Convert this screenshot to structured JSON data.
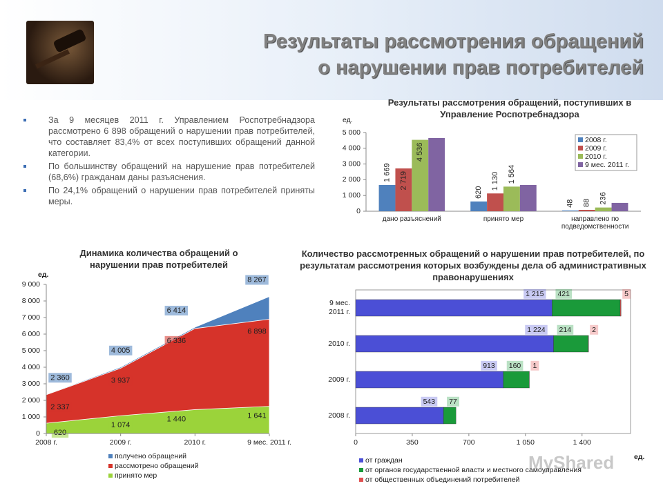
{
  "header": {
    "title_line1": "Результаты рассмотрения обращений",
    "title_line2": "о нарушении прав потребителей"
  },
  "bullets": [
    "За 9 месяцев 2011 г. Управлением Роспотребнадзора рассмотрено 6 898 обращений о нарушении прав потребителей, что составляет 83,4% от всех поступивших обращений данной категории.",
    "По большинству обращений на нарушение прав потребителей (68,6%) гражданам даны разъяснения.",
    "По 24,1% обращений о нарушении прав потребителей приняты меры."
  ],
  "watermark": "MyShared",
  "chart_data": [
    {
      "type": "bar",
      "title": "Результаты рассмотрения обращений, поступивших в Управление Роспотребнадзора",
      "ylabel": "ед.",
      "categories": [
        "дано разъяснений",
        "принято мер",
        "направлено по подведомственности"
      ],
      "series": [
        {
          "name": "2008 г.",
          "color": "#4f81bd",
          "values": [
            1669,
            620,
            48
          ],
          "value_labels": [
            "1 669",
            "620",
            "48"
          ]
        },
        {
          "name": "2009 г.",
          "color": "#c0504d",
          "values": [
            2719,
            1130,
            88
          ],
          "value_labels": [
            "2 719",
            "1 130",
            "88"
          ]
        },
        {
          "name": "2010 г.",
          "color": "#9bbb59",
          "values": [
            4536,
            1564,
            236
          ],
          "value_labels": [
            "4 536",
            "1 564",
            "236"
          ]
        },
        {
          "name": "9 мес. 2011 г.",
          "color": "#8064a2",
          "values": [
            4650,
            1670,
            530
          ]
        }
      ],
      "ylim": [
        0,
        5000
      ],
      "yticks": [
        0,
        {
          "value": 1000,
          "label": "1 000"
        },
        {
          "value": 2000,
          "label": "2 000"
        },
        {
          "value": 3000,
          "label": "3 000"
        },
        {
          "value": 4000,
          "label": "4 000"
        },
        {
          "value": 5000,
          "label": "5 000"
        }
      ]
    },
    {
      "type": "area",
      "title": "Динамика количества обращений о нарушении прав потребителей",
      "ylabel": "ед.",
      "categories": [
        "2008 г.",
        "2009 г.",
        "2010 г.",
        "9 мес. 2011 г."
      ],
      "series": [
        {
          "name": "получено обращений",
          "color": "#4f81bd",
          "values": [
            2360,
            4005,
            6414,
            8267
          ],
          "value_labels": [
            "2 360",
            "4 005",
            "6 414",
            "8 267"
          ]
        },
        {
          "name": "рассмотрено обращений",
          "color": "#d6332a",
          "values": [
            2337,
            3937,
            6336,
            6898
          ],
          "value_labels": [
            "2 337",
            "3 937",
            "6 336",
            "6 898"
          ]
        },
        {
          "name": "принято мер",
          "color": "#9bd33a",
          "values": [
            620,
            1074,
            1440,
            1641
          ],
          "value_labels": [
            "620",
            "1 074",
            "1 440",
            "1 641"
          ]
        }
      ],
      "ylim": [
        0,
        9000
      ],
      "yticks": [
        0,
        {
          "value": 1000,
          "label": "1 000"
        },
        {
          "value": 2000,
          "label": "2 000"
        },
        {
          "value": 3000,
          "label": "3 000"
        },
        {
          "value": 4000,
          "label": "4 000"
        },
        {
          "value": 5000,
          "label": "5 000"
        },
        {
          "value": 6000,
          "label": "6 000"
        },
        {
          "value": 7000,
          "label": "7 000"
        },
        {
          "value": 8000,
          "label": "8 000"
        },
        {
          "value": 9000,
          "label": "9 000"
        }
      ]
    },
    {
      "type": "bar",
      "orientation": "horizontal",
      "stacked": true,
      "title": "Количество рассмотренных обращений о нарушении прав потребителей, по результатам рассмотрения которых возбуждены дела об административных правонарушениях",
      "xlabel": "ед.",
      "categories": [
        "9 мес. 2011 г.",
        "2010 г.",
        "2009 г.",
        "2008 г."
      ],
      "series": [
        {
          "name": "от граждан",
          "color": "#4b4fd6",
          "values": [
            1215,
            1224,
            913,
            543
          ],
          "value_labels": [
            "1 215",
            "1 224",
            "913",
            "543"
          ]
        },
        {
          "name": "от органов государственной власти и местного самоуправления",
          "color": "#1a9a3a",
          "values": [
            421,
            214,
            160,
            77
          ]
        },
        {
          "name": "от общественных объединений потребителей",
          "color": "#e05050",
          "values": [
            5,
            2,
            1,
            null
          ]
        }
      ],
      "xlim": [
        0,
        1700
      ],
      "xticks": [
        0,
        350,
        700,
        {
          "value": 1050,
          "label": "1 050"
        },
        {
          "value": 1400,
          "label": "1 400"
        }
      ]
    }
  ]
}
